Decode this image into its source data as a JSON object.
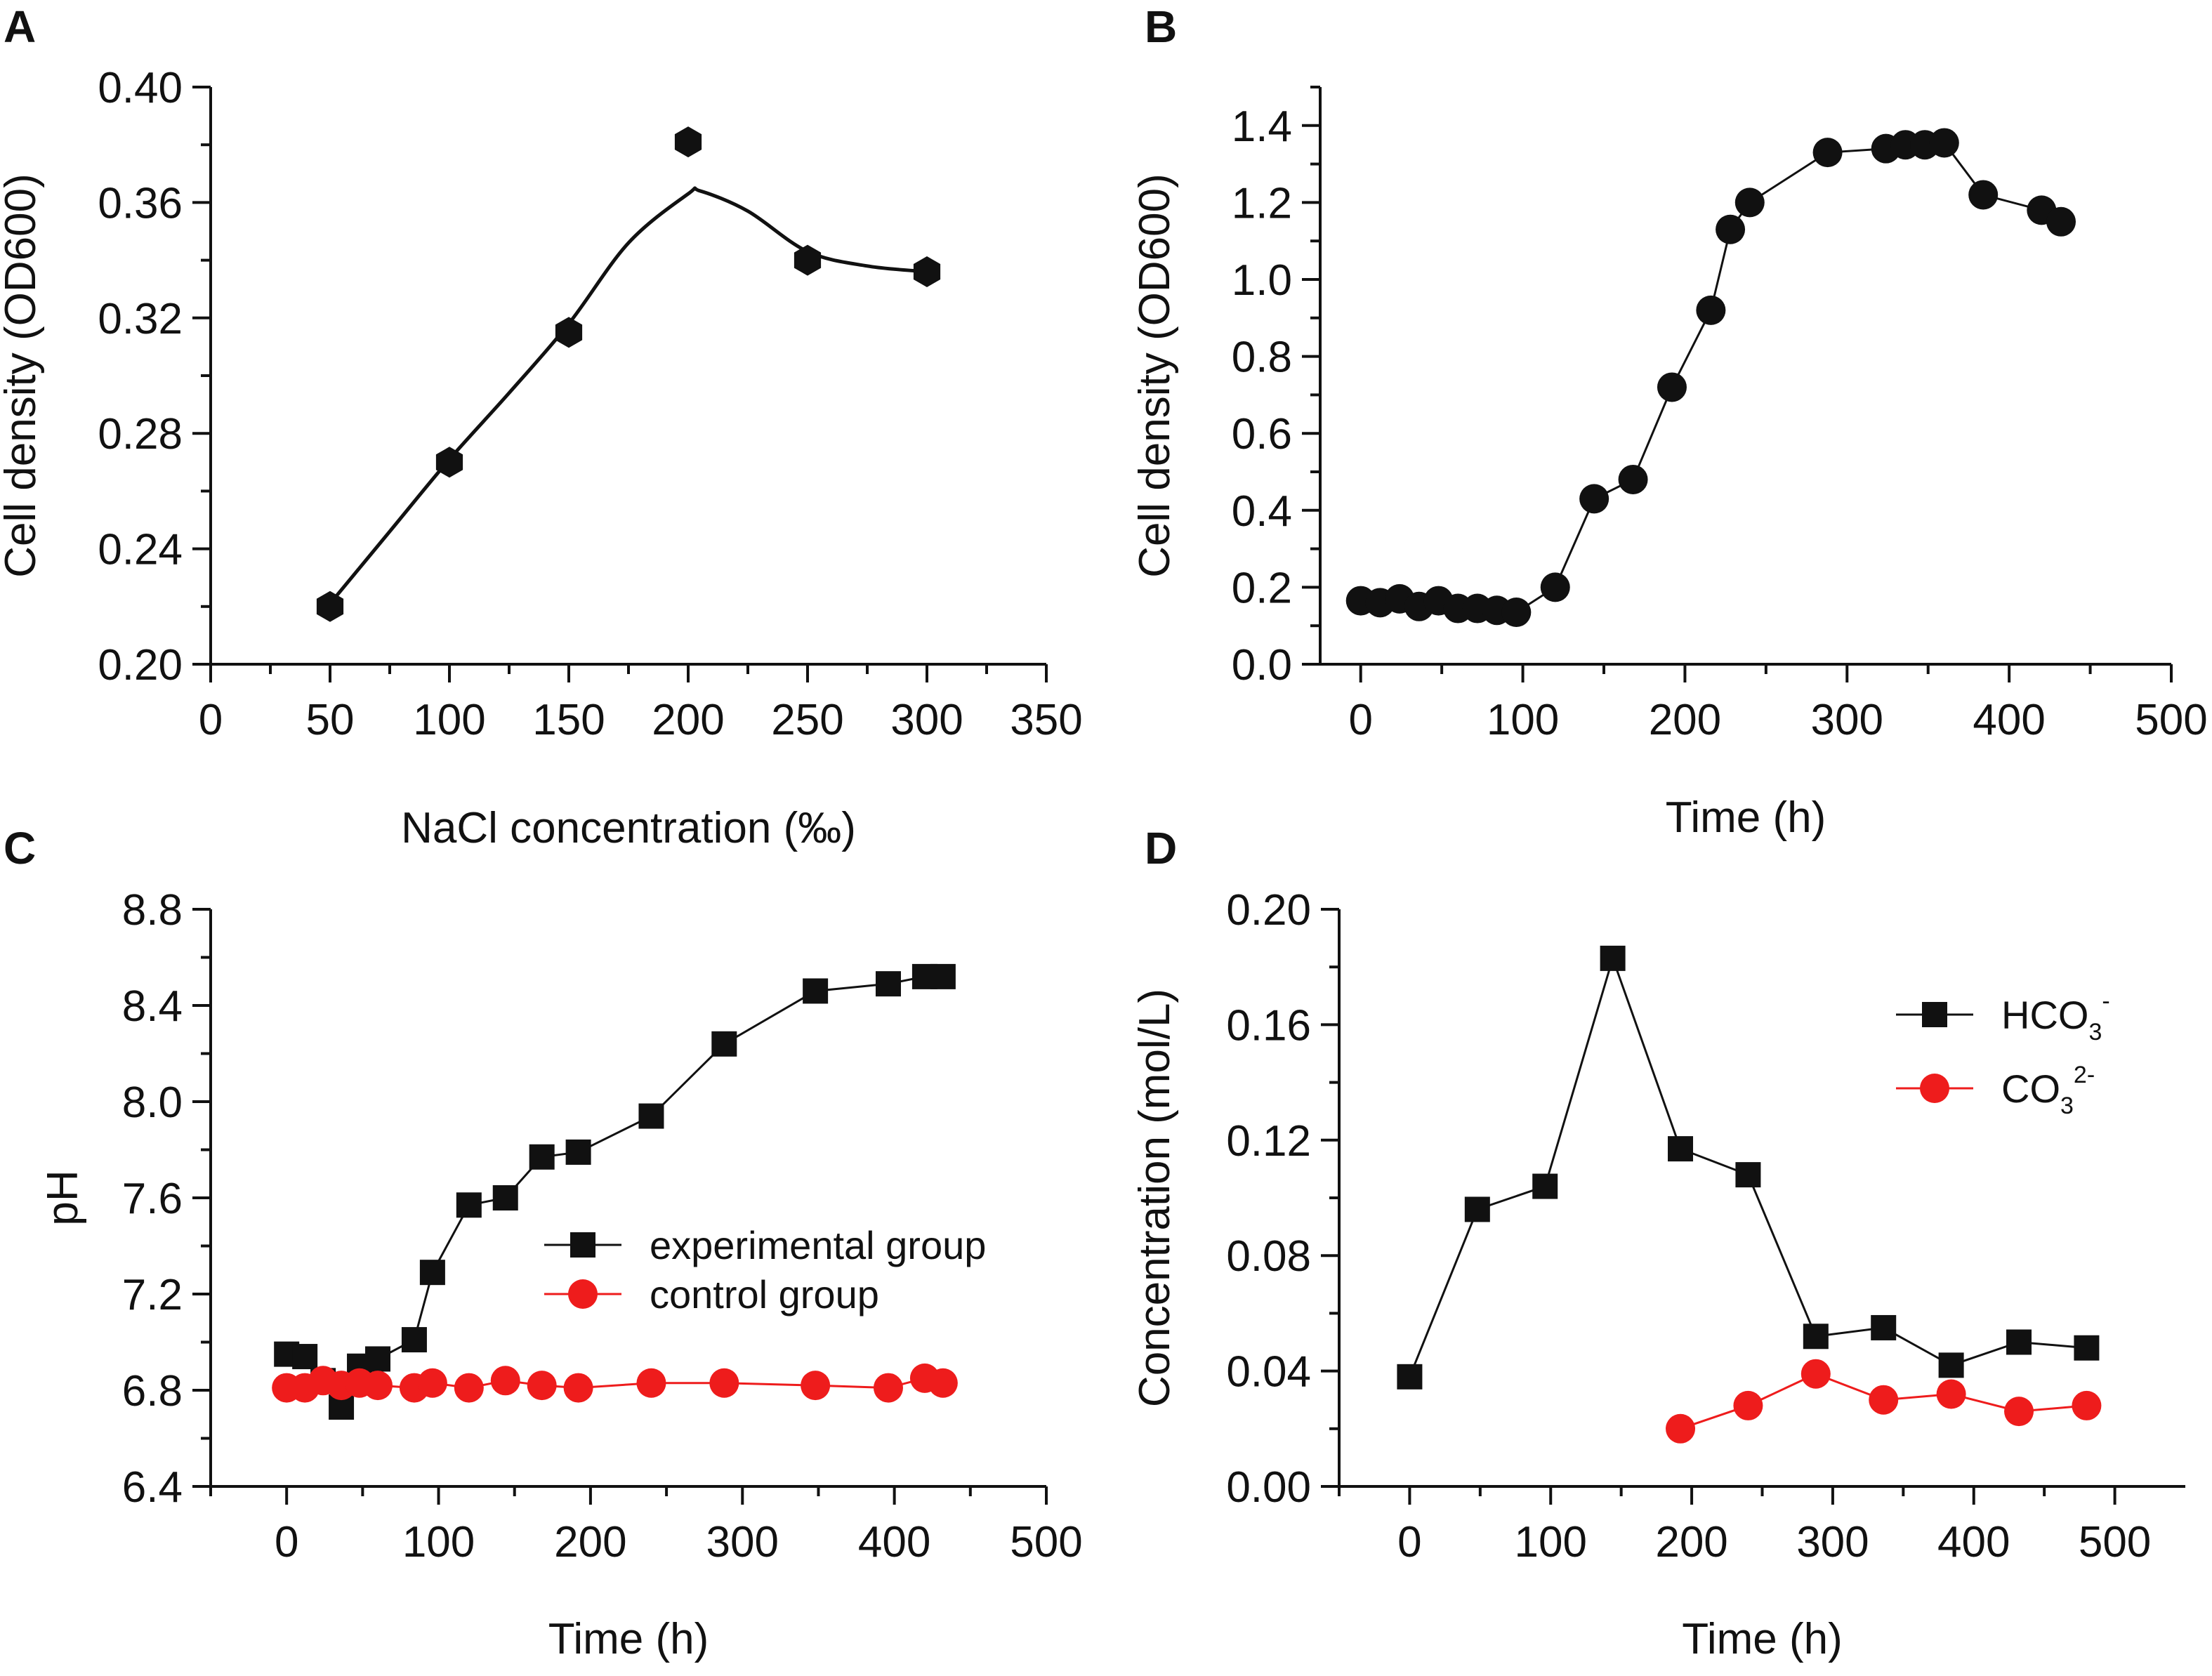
{
  "chart_data": [
    {
      "panel": "A",
      "type": "scatter",
      "xlabel": "NaCl concentration (‰)",
      "ylabel": "Cell density (OD600)",
      "xlim": [
        0,
        350
      ],
      "ylim": [
        0.2,
        0.4
      ],
      "xticks": [
        "0",
        "50",
        "100",
        "150",
        "200",
        "250",
        "300",
        "350"
      ],
      "yticks": [
        "0.20",
        "0.24",
        "0.28",
        "0.32",
        "0.36",
        "0.40"
      ],
      "series": [
        {
          "name": "OD600",
          "marker": "hexagon",
          "color": "#111111",
          "x": [
            50,
            100,
            150,
            200,
            250,
            300
          ],
          "y": [
            0.22,
            0.27,
            0.315,
            0.381,
            0.34,
            0.336
          ]
        }
      ],
      "fit_curve": {
        "x": [
          50,
          75,
          100,
          125,
          150,
          175,
          200,
          205,
          225,
          250,
          275,
          300
        ],
        "y": [
          0.221,
          0.246,
          0.271,
          0.294,
          0.318,
          0.346,
          0.363,
          0.364,
          0.357,
          0.343,
          0.338,
          0.336
        ]
      }
    },
    {
      "panel": "B",
      "type": "line",
      "xlabel": "Time (h)",
      "ylabel": "Cell density (OD600)",
      "xlim": [
        -25,
        500
      ],
      "ylim": [
        0.0,
        1.5
      ],
      "xticks": [
        "0",
        "100",
        "200",
        "300",
        "400",
        "500"
      ],
      "yticks": [
        "0.0",
        "0.2",
        "0.4",
        "0.6",
        "0.8",
        "1.0",
        "1.2",
        "1.4"
      ],
      "series": [
        {
          "name": "OD600",
          "marker": "circle",
          "color": "#111111",
          "x": [
            0,
            12,
            24,
            36,
            48,
            60,
            72,
            84,
            96,
            120,
            144,
            168,
            192,
            216,
            228,
            240,
            288,
            324,
            336,
            348,
            360,
            384,
            420,
            432
          ],
          "y": [
            0.165,
            0.16,
            0.17,
            0.15,
            0.165,
            0.145,
            0.145,
            0.14,
            0.135,
            0.2,
            0.43,
            0.48,
            0.72,
            0.92,
            1.13,
            1.2,
            1.33,
            1.34,
            1.35,
            1.35,
            1.355,
            1.22,
            1.18,
            1.15
          ]
        }
      ]
    },
    {
      "panel": "C",
      "type": "line",
      "xlabel": "Time (h)",
      "ylabel": "pH",
      "xlim": [
        -50,
        500
      ],
      "ylim": [
        6.4,
        8.8
      ],
      "xticks": [
        "0",
        "100",
        "200",
        "300",
        "400",
        "500"
      ],
      "yticks": [
        "6.4",
        "6.8",
        "7.2",
        "7.6",
        "8.0",
        "8.4",
        "8.8"
      ],
      "legend": "center-right",
      "series": [
        {
          "name": "experimental group",
          "marker": "square",
          "color": "#111111",
          "x": [
            0,
            12,
            24,
            36,
            48,
            60,
            84,
            96,
            120,
            144,
            168,
            192,
            240,
            288,
            348,
            396,
            420,
            432
          ],
          "y": [
            6.95,
            6.94,
            6.84,
            6.73,
            6.9,
            6.93,
            7.01,
            7.29,
            7.57,
            7.6,
            7.77,
            7.79,
            7.94,
            8.24,
            8.46,
            8.49,
            8.52,
            8.52
          ]
        },
        {
          "name": "control group",
          "marker": "circle",
          "color": "#ee1c1c",
          "x": [
            0,
            12,
            24,
            36,
            48,
            60,
            84,
            96,
            120,
            144,
            168,
            192,
            240,
            288,
            348,
            396,
            420,
            432
          ],
          "y": [
            6.81,
            6.81,
            6.84,
            6.82,
            6.83,
            6.82,
            6.81,
            6.83,
            6.81,
            6.84,
            6.82,
            6.81,
            6.83,
            6.83,
            6.82,
            6.81,
            6.85,
            6.83
          ]
        }
      ]
    },
    {
      "panel": "D",
      "type": "line",
      "xlabel": "Time (h)",
      "ylabel": "Concentration (mol/L)",
      "xlim": [
        -50,
        550
      ],
      "ylim": [
        0.0,
        0.2
      ],
      "xticks": [
        "0",
        "100",
        "200",
        "300",
        "400",
        "500"
      ],
      "yticks": [
        "0.00",
        "0.04",
        "0.08",
        "0.12",
        "0.16",
        "0.20"
      ],
      "legend": "top-right",
      "series": [
        {
          "name": "HCO",
          "sub": "3",
          "sup": "-",
          "marker": "square",
          "color": "#111111",
          "x": [
            0,
            48,
            96,
            144,
            192,
            240,
            288,
            336,
            384,
            432,
            480
          ],
          "y": [
            0.038,
            0.096,
            0.104,
            0.183,
            0.117,
            0.108,
            0.052,
            0.055,
            0.042,
            0.05,
            0.048
          ]
        },
        {
          "name": "CO",
          "sub": "3",
          "sup": "2-",
          "marker": "circle",
          "color": "#ee1c1c",
          "x": [
            192,
            240,
            288,
            336,
            384,
            432,
            480
          ],
          "y": [
            0.02,
            0.028,
            0.039,
            0.03,
            0.032,
            0.026,
            0.028
          ]
        }
      ]
    }
  ]
}
